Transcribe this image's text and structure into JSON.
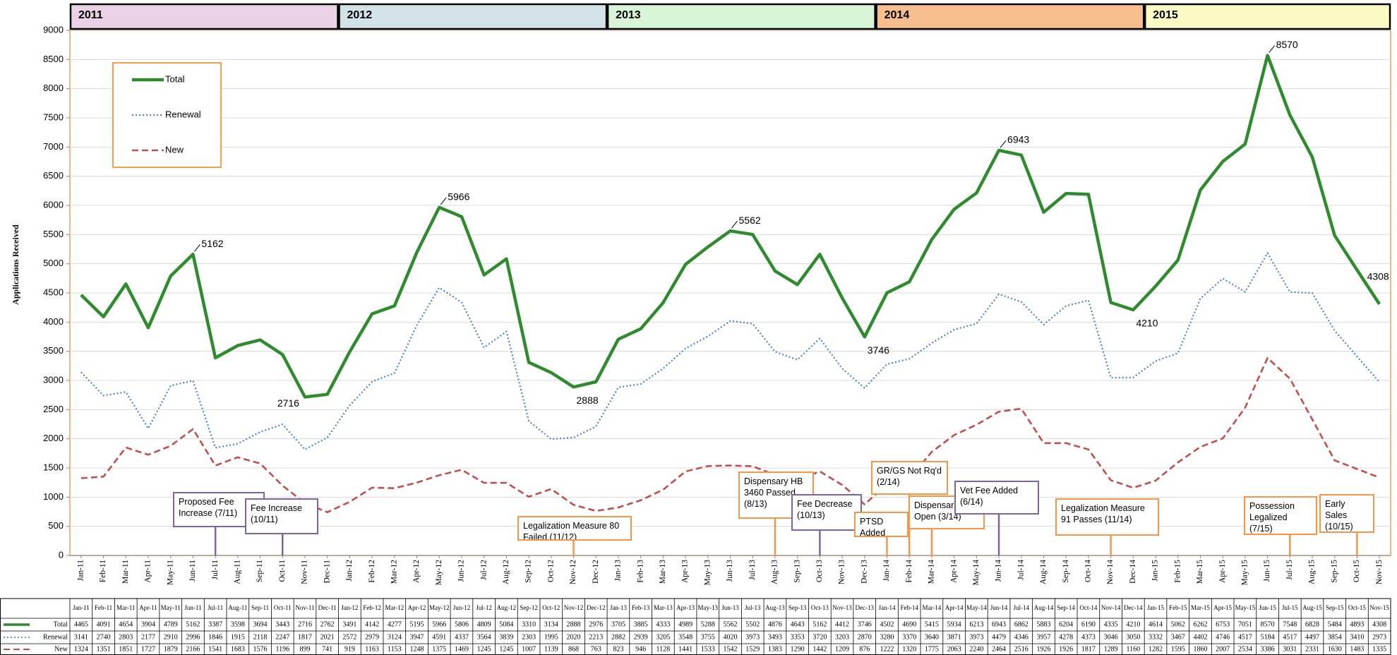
{
  "chart_data": {
    "type": "line",
    "y_label": "Applications Received",
    "categories": [
      "Jan-11",
      "Feb-11",
      "Mar-11",
      "Apr-11",
      "May-11",
      "Jun-11",
      "Jul-11",
      "Aug-11",
      "Sep-11",
      "Oct-11",
      "Nov-11",
      "Dec-11",
      "Jan-12",
      "Feb-12",
      "Mar-12",
      "Apr-12",
      "May-12",
      "Jun-12",
      "Jul-12",
      "Aug-12",
      "Sep-12",
      "Oct-12",
      "Nov-12",
      "Dec-12",
      "Jan-13",
      "Feb-13",
      "Mar-13",
      "Apr-13",
      "May-13",
      "Jun-13",
      "Jul-13",
      "Aug-13",
      "Sep-13",
      "Oct-13",
      "Nov-13",
      "Dec-13",
      "Jan-14",
      "Feb-14",
      "Mar-14",
      "Apr-14",
      "May-14",
      "Jun-14",
      "Jul-14",
      "Aug-14",
      "Sep-14",
      "Oct-14",
      "Nov-14",
      "Dec-14",
      "Jan-15",
      "Feb-15",
      "Mar-15",
      "Apr-15",
      "May-15",
      "Jun-15",
      "Jul-15",
      "Aug-15",
      "Sep-15",
      "Oct-15",
      "Nov-15"
    ],
    "series": [
      {
        "name": "Total",
        "color": "#2e8b2e",
        "style": "solid",
        "values": [
          4465,
          4091,
          4654,
          3904,
          4789,
          5162,
          3387,
          3598,
          3694,
          3443,
          2716,
          2762,
          3491,
          4142,
          4277,
          5195,
          5966,
          5806,
          4809,
          5084,
          3310,
          3134,
          2888,
          2976,
          3705,
          3885,
          4333,
          4989,
          5288,
          5562,
          5502,
          4876,
          4643,
          5162,
          4412,
          3746,
          4502,
          4690,
          5415,
          5934,
          6213,
          6943,
          6862,
          5883,
          6204,
          6190,
          4335,
          4210,
          4614,
          5062,
          6262,
          6753,
          7051,
          8570,
          7548,
          6828,
          5484,
          4893,
          4308
        ],
        "value_labels": [
          null,
          null,
          null,
          null,
          null,
          "5162",
          null,
          null,
          null,
          null,
          "2716",
          null,
          null,
          null,
          null,
          null,
          "5966",
          null,
          null,
          null,
          null,
          null,
          "2888",
          null,
          null,
          null,
          null,
          null,
          null,
          "5562",
          null,
          null,
          null,
          null,
          null,
          "3746",
          null,
          null,
          null,
          null,
          null,
          "6943",
          null,
          null,
          null,
          null,
          null,
          "4210",
          null,
          null,
          null,
          null,
          null,
          "8570",
          null,
          null,
          null,
          null,
          "4308"
        ]
      },
      {
        "name": "Renewal",
        "color": "#4a86c8",
        "style": "dotted",
        "values": [
          3141,
          2740,
          2803,
          2177,
          2910,
          2996,
          1846,
          1915,
          2118,
          2247,
          1817,
          2021,
          2572,
          2979,
          3124,
          3947,
          4591,
          4337,
          3564,
          3839,
          2303,
          1995,
          2020,
          2213,
          2882,
          2939,
          3205,
          3548,
          3755,
          4020,
          3973,
          3493,
          3353,
          3720,
          3203,
          2870,
          3280,
          3370,
          3640,
          3871,
          3973,
          4479,
          4346,
          3957,
          4278,
          4373,
          3046,
          3050,
          3332,
          3467,
          4402,
          4746,
          4517,
          5184,
          4517,
          4497,
          3854,
          3410,
          2973
        ]
      },
      {
        "name": "New",
        "color": "#c0504d",
        "style": "dashed",
        "values": [
          1324,
          1351,
          1851,
          1727,
          1879,
          2166,
          1541,
          1683,
          1576,
          1196,
          899,
          741,
          919,
          1163,
          1153,
          1248,
          1375,
          1469,
          1245,
          1245,
          1007,
          1139,
          868,
          763,
          823,
          946,
          1128,
          1441,
          1533,
          1542,
          1529,
          1383,
          1290,
          1442,
          1209,
          876,
          1222,
          1320,
          1775,
          2063,
          2240,
          2464,
          2516,
          1926,
          1926,
          1817,
          1289,
          1160,
          1282,
          1595,
          1860,
          2007,
          2534,
          3386,
          3031,
          2331,
          1630,
          1483,
          1335
        ]
      }
    ],
    "ylim": [
      0,
      9000
    ],
    "yticks": [
      0,
      500,
      1000,
      1500,
      2000,
      2500,
      3000,
      3500,
      4000,
      4500,
      5000,
      5500,
      6000,
      6500,
      7000,
      7500,
      8000,
      8500,
      9000
    ],
    "grid": true,
    "periods": [
      {
        "label": "2011",
        "color": "#ead1e6"
      },
      {
        "label": "2012",
        "color": "#d2e2e6"
      },
      {
        "label": "2013",
        "color": "#d8f5d8"
      },
      {
        "label": "2014",
        "color": "#f8bf8e"
      },
      {
        "label": "2015",
        "color": "#fbfac4"
      }
    ],
    "annotations": [
      {
        "text": "Proposed Fee Increase (7/11)",
        "color": "#8064a2"
      },
      {
        "text": "Fee Increase (10/11)",
        "color": "#8064a2"
      },
      {
        "text": "Legalization Measure 80 Failed (11/12)",
        "color": "#f79646"
      },
      {
        "text": "Dispensary HB 3460 Passed (8/13)",
        "color": "#f79646"
      },
      {
        "text": "Fee Decrease (10/13)",
        "color": "#8064a2"
      },
      {
        "text": "GR/GS Not Rq'd (2/14)",
        "color": "#f79646"
      },
      {
        "text": "PTSD Added (1/14)",
        "color": "#f79646"
      },
      {
        "text": "Dispensaries Open (3/14)",
        "color": "#f79646"
      },
      {
        "text": "Vet Fee Added (6/14)",
        "color": "#8064a2"
      },
      {
        "text": "Legalization Measure 91 Passes (11/14)",
        "color": "#f79646"
      },
      {
        "text": "Possession Legalized (7/15)",
        "color": "#f79646"
      },
      {
        "text": "Early Sales (10/15)",
        "color": "#f79646"
      }
    ]
  }
}
